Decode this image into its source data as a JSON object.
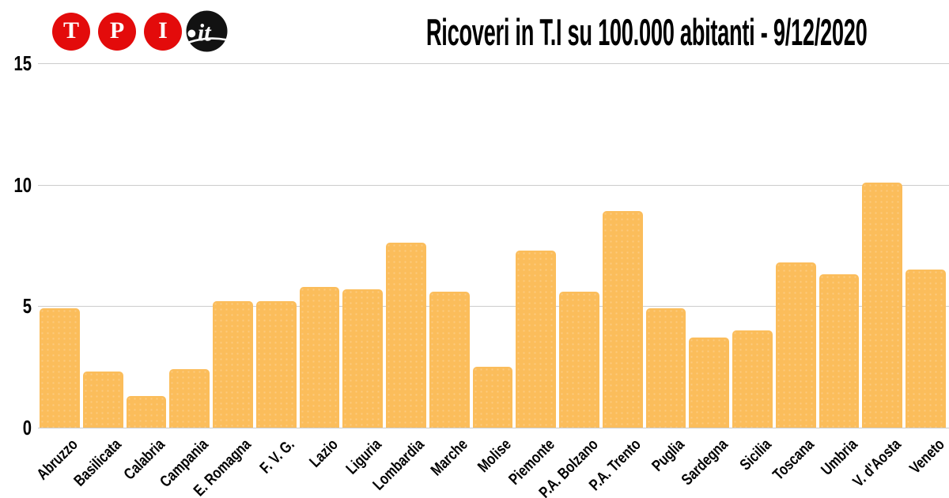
{
  "logo": {
    "letters": [
      "T",
      "P",
      "I"
    ],
    "dot": ".",
    "suffix": "it",
    "red": "#E30B0B",
    "black": "#121212"
  },
  "chart_data": {
    "type": "bar",
    "title": "Ricoveri in T.I su 100.000 abitanti - 9/12/2020",
    "categories": [
      "Abruzzo",
      "Basilicata",
      "Calabria",
      "Campania",
      "E. Romagna",
      "F. V. G.",
      "Lazio",
      "Liguria",
      "Lombardia",
      "Marche",
      "Molise",
      "Piemonte",
      "P.A. Bolzano",
      "P.A. Trento",
      "Puglia",
      "Sardegna",
      "Sicilia",
      "Toscana",
      "Umbria",
      "V. d'Aosta",
      "Veneto"
    ],
    "values": [
      4.9,
      2.3,
      1.3,
      2.4,
      5.2,
      5.2,
      5.8,
      5.7,
      7.6,
      5.6,
      2.5,
      7.3,
      5.6,
      8.9,
      4.9,
      3.7,
      4.0,
      6.8,
      6.3,
      10.1,
      6.5
    ],
    "yticks": [
      0,
      5,
      10,
      15
    ],
    "ylim": [
      0,
      15
    ],
    "xlabel": "",
    "ylabel": "",
    "grid": true,
    "legend": false,
    "bar_color": "#FBBD5B",
    "gridline_color": "#CCCCCC",
    "text_color": "#000000"
  }
}
